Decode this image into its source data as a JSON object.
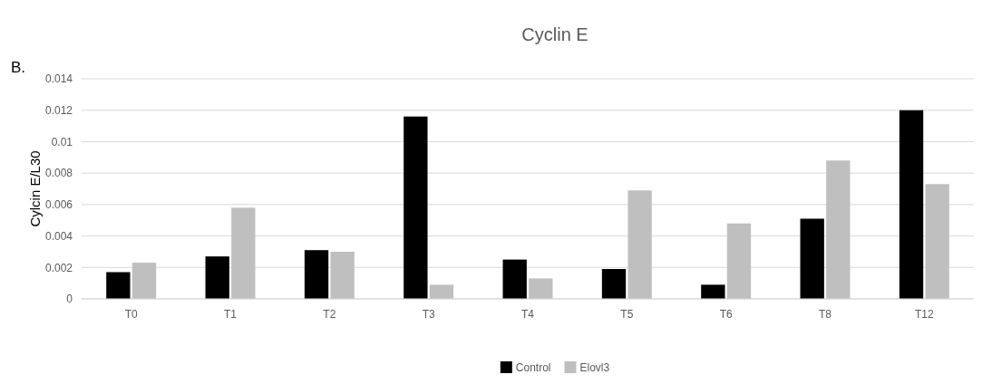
{
  "chart_data": {
    "type": "bar",
    "title": "Cyclin E",
    "ylabel": "Cylcin E/L30",
    "annotations": [
      "B."
    ],
    "categories": [
      "T0",
      "T1",
      "T2",
      "T3",
      "T4",
      "T5",
      "T6",
      "T8",
      "T12"
    ],
    "series": [
      {
        "name": "Control",
        "color": "#000000",
        "values": [
          0.0017,
          0.0027,
          0.0031,
          0.0116,
          0.0025,
          0.0019,
          0.0009,
          0.0051,
          0.012
        ]
      },
      {
        "name": "Elovl3",
        "color": "#bfbfbf",
        "values": [
          0.0023,
          0.0058,
          0.003,
          0.0009,
          0.0013,
          0.0069,
          0.0048,
          0.0088,
          0.0073
        ]
      }
    ],
    "ylim": [
      0,
      0.014
    ],
    "yticks": [
      0,
      0.002,
      0.004,
      0.006,
      0.008,
      0.01,
      0.012,
      0.014
    ],
    "grid": "y",
    "legend": "bottom"
  }
}
